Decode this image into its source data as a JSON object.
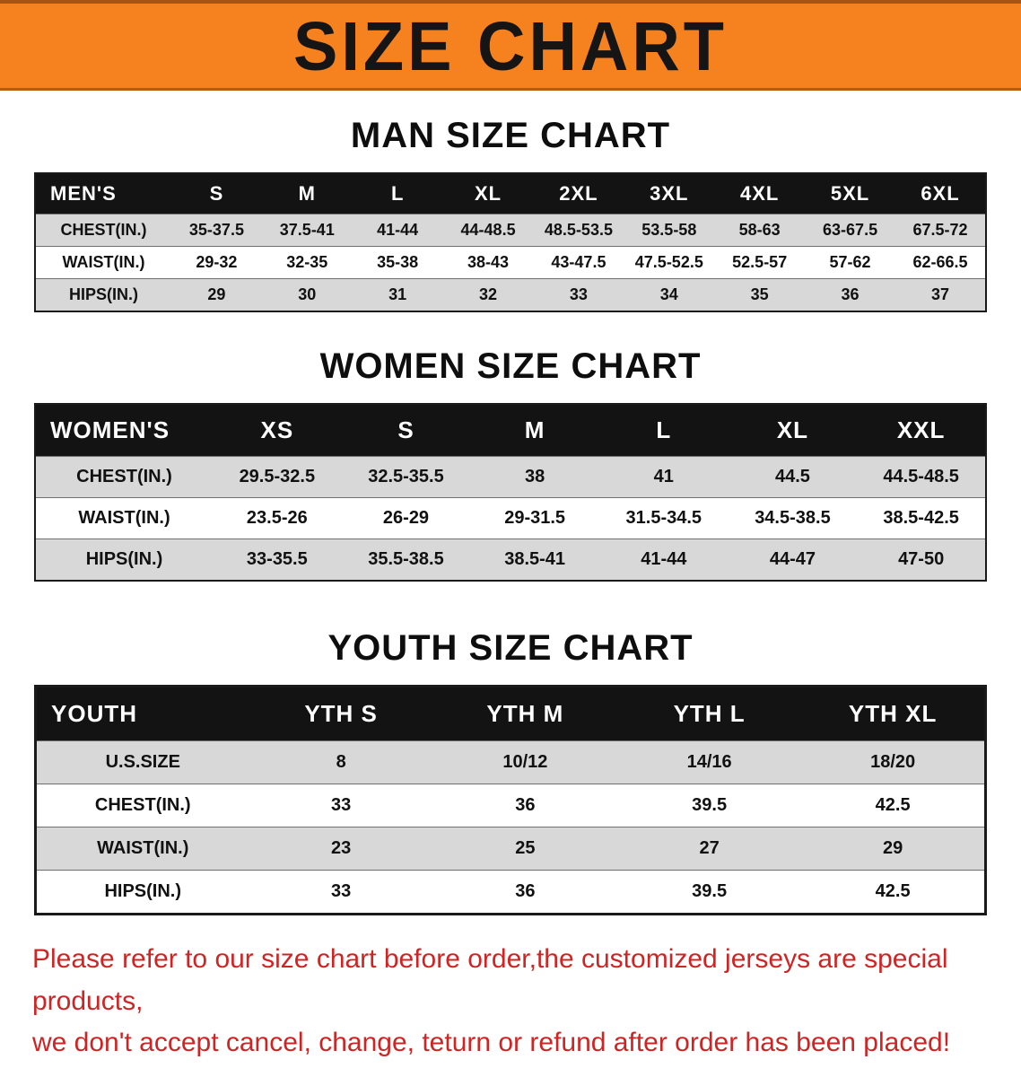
{
  "banner": {
    "title": "SIZE CHART",
    "bg_color": "#f5821f",
    "text_color": "#151515"
  },
  "sections": [
    {
      "id": "men",
      "heading": "MAN SIZE CHART",
      "table": {
        "header": [
          "MEN'S",
          "S",
          "M",
          "L",
          "XL",
          "2XL",
          "3XL",
          "4XL",
          "5XL",
          "6XL"
        ],
        "rows": [
          [
            "CHEST(IN.)",
            "35-37.5",
            "37.5-41",
            "41-44",
            "44-48.5",
            "48.5-53.5",
            "53.5-58",
            "58-63",
            "63-67.5",
            "67.5-72"
          ],
          [
            "WAIST(IN.)",
            "29-32",
            "32-35",
            "35-38",
            "38-43",
            "43-47.5",
            "47.5-52.5",
            "52.5-57",
            "57-62",
            "62-66.5"
          ],
          [
            "HIPS(IN.)",
            "29",
            "30",
            "31",
            "32",
            "33",
            "34",
            "35",
            "36",
            "37"
          ]
        ]
      }
    },
    {
      "id": "women",
      "heading": "WOMEN SIZE CHART",
      "table": {
        "header": [
          "WOMEN'S",
          "XS",
          "S",
          "M",
          "L",
          "XL",
          "XXL"
        ],
        "rows": [
          [
            "CHEST(IN.)",
            "29.5-32.5",
            "32.5-35.5",
            "38",
            "41",
            "44.5",
            "44.5-48.5"
          ],
          [
            "WAIST(IN.)",
            "23.5-26",
            "26-29",
            "29-31.5",
            "31.5-34.5",
            "34.5-38.5",
            "38.5-42.5"
          ],
          [
            "HIPS(IN.)",
            "33-35.5",
            "35.5-38.5",
            "38.5-41",
            "41-44",
            "44-47",
            "47-50"
          ]
        ]
      }
    },
    {
      "id": "youth",
      "heading": "YOUTH SIZE CHART",
      "table": {
        "header": [
          "YOUTH",
          "YTH S",
          "YTH M",
          "YTH L",
          "YTH XL"
        ],
        "rows": [
          [
            "U.S.SIZE",
            "8",
            "10/12",
            "14/16",
            "18/20"
          ],
          [
            "CHEST(IN.)",
            "33",
            "36",
            "39.5",
            "42.5"
          ],
          [
            "WAIST(IN.)",
            "23",
            "25",
            "27",
            "29"
          ],
          [
            "HIPS(IN.)",
            "33",
            "36",
            "39.5",
            "42.5"
          ]
        ]
      }
    }
  ],
  "disclaimer": {
    "color": "#d02424",
    "lines": [
      "Please refer to our size chart before order,the customized jerseys are special products,",
      "we don't accept cancel, change, teturn or refund after order has been placed!"
    ]
  }
}
